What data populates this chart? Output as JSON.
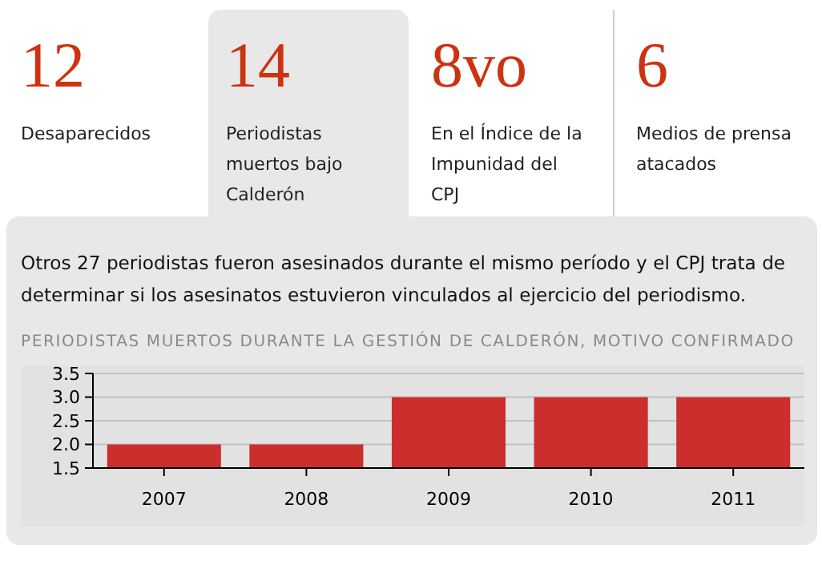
{
  "chart_data": [
    {
      "type": "other",
      "annotations": [
        "12",
        "Desaparecidos",
        "14",
        "Periodistas muertos bajo Calderón",
        "8vo",
        "En el Índice de la Impunidad del CPJ",
        "6",
        "Medios de prensa atacados"
      ]
    },
    {
      "type": "bar",
      "subtitle": "Otros 27 periodistas fueron asesinados durante el mismo período y el CPJ trata de determinar si los asesinatos estuvieron vinculados al ejercicio del periodismo.",
      "title": "PERIODISTAS MUERTOS DURANTE LA GESTIÓN DE CALDERÓN, MOTIVO CONFIRMADO",
      "categories": [
        "2007",
        "2008",
        "2009",
        "2010",
        "2011"
      ],
      "values": [
        2,
        2,
        3,
        3,
        3
      ],
      "color": "#cc2e2e",
      "ylim": [
        1.5,
        3.5
      ],
      "yticks": [
        {
          "value": 1.5,
          "label": "1.5"
        },
        {
          "value": 2,
          "label": "2.0"
        },
        {
          "value": 2.5,
          "label": "2.5"
        },
        {
          "value": 3,
          "label": "3.0"
        },
        {
          "value": 3.5,
          "label": "3.5"
        }
      ],
      "grid": "y"
    }
  ]
}
